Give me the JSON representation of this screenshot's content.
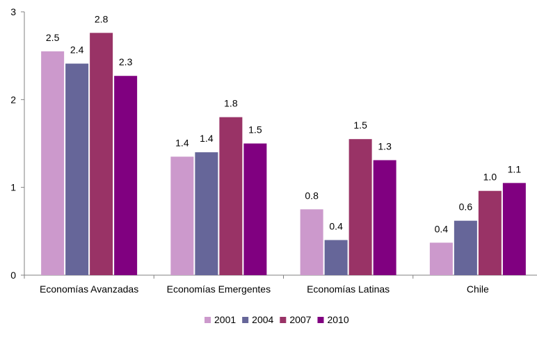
{
  "chart_data": {
    "type": "bar",
    "title": "",
    "xlabel": "",
    "ylabel": "",
    "ylim": [
      0,
      3
    ],
    "yticks": [
      "0",
      "1",
      "2",
      "3"
    ],
    "categories": [
      "Economías Avanzadas",
      "Economías Emergentes",
      "Economías Latinas",
      "Chile"
    ],
    "series": [
      {
        "name": "2001",
        "color": "#cc99cc",
        "values": [
          2.55,
          1.35,
          0.75,
          0.37
        ],
        "labels": [
          "2.5",
          "1.4",
          "0.8",
          "0.4"
        ]
      },
      {
        "name": "2004",
        "color": "#666699",
        "values": [
          2.41,
          1.4,
          0.4,
          0.62
        ],
        "labels": [
          "2.4",
          "1.4",
          "0.4",
          "0.6"
        ]
      },
      {
        "name": "2007",
        "color": "#993366",
        "values": [
          2.76,
          1.8,
          1.55,
          0.96
        ],
        "labels": [
          "2.8",
          "1.8",
          "1.5",
          "1.0"
        ]
      },
      {
        "name": "2010",
        "color": "#800080",
        "values": [
          2.27,
          1.5,
          1.31,
          1.05
        ],
        "labels": [
          "2.3",
          "1.5",
          "1.3",
          "1.1"
        ]
      }
    ],
    "grid": false,
    "legend_position": "bottom"
  }
}
